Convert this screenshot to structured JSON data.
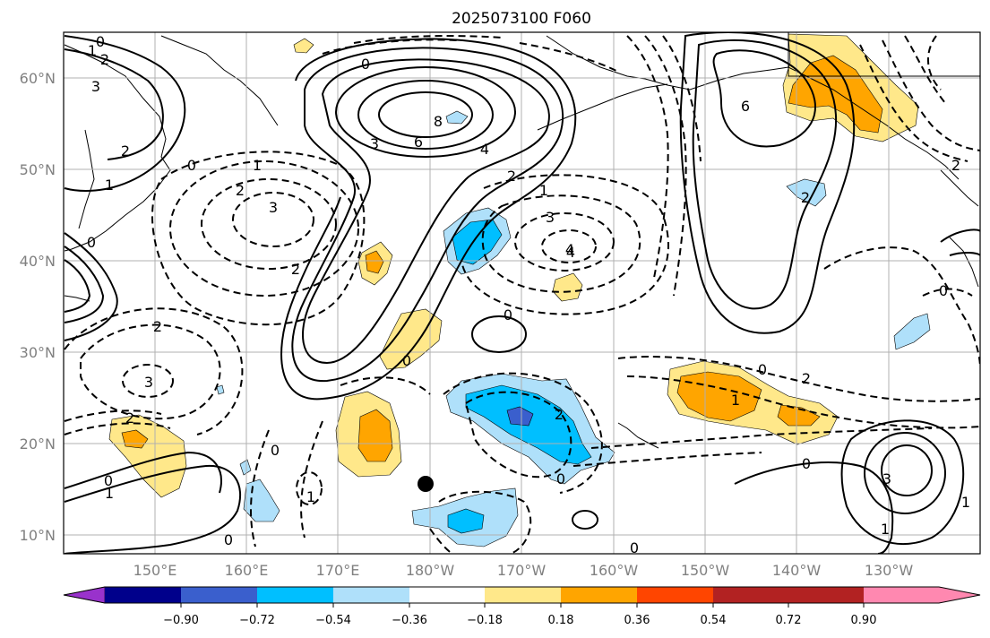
{
  "title": "2025073100 F060",
  "map": {
    "lon_labels": [
      "150°E",
      "160°E",
      "170°E",
      "180°W",
      "170°W",
      "160°W",
      "150°W",
      "140°W",
      "130°W"
    ],
    "lat_labels": [
      "60°N",
      "50°N",
      "40°N",
      "30°N",
      "20°N",
      "10°N"
    ],
    "contour_labels": [
      "0",
      "1",
      "2",
      "3",
      "2",
      "3",
      "0",
      "8",
      "6",
      "4",
      "2",
      "1",
      "3",
      "4",
      "6",
      "2",
      "0",
      "1",
      "2",
      "3",
      "0",
      "1",
      "2",
      "0",
      "3",
      "2",
      "0",
      "4",
      "0",
      "2",
      "1",
      "0",
      "1",
      "2",
      "0",
      "0",
      "1",
      "0",
      "2",
      "3",
      "1",
      "0",
      "1",
      "0",
      "2",
      "0"
    ],
    "marker": "black-dot"
  },
  "colorbar": {
    "labels": [
      "−0.90",
      "−0.72",
      "−0.54",
      "−0.36",
      "−0.18",
      "0.18",
      "0.36",
      "0.54",
      "0.72",
      "0.90"
    ],
    "colors": [
      "#9932cc",
      "#00008b",
      "#3a5fcd",
      "#00bfff",
      "#afe0fa",
      "#ffffff",
      "#ffe88a",
      "#ffa500",
      "#ff4500",
      "#b22222",
      "#ff88b0"
    ]
  },
  "shading_colors": {
    "light_blue": "#afe0fa",
    "blue": "#00bfff",
    "dark_blue": "#3a5fcd",
    "yellow": "#ffe88a",
    "orange": "#ffa500"
  }
}
